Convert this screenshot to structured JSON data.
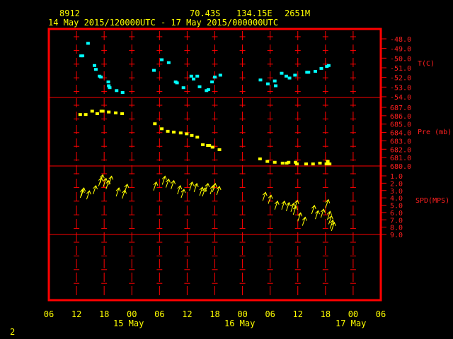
{
  "header": {
    "station": "8912",
    "lat": "70.43S",
    "lon": "134.15E",
    "elev": "2651M",
    "period": "14 May 2015/120000UTC - 17 May 2015/000000UTC"
  },
  "footer": {
    "page_number": "2"
  },
  "colors": {
    "frame": "#ff0000",
    "axis_text": "#ffff00",
    "temp": "#00ffff",
    "pressure": "#ffff00",
    "wind": "#ffff00",
    "panel_text": "#ff2020"
  },
  "chart_data": [
    {
      "type": "scatter",
      "panel": "temperature",
      "ylabel": "T(C)",
      "ticks": [
        "-48.0",
        "-49.0",
        "-50.0",
        "-51.0",
        "-52.0",
        "-53.0",
        "-54.0"
      ],
      "ylim": [
        -54,
        -47.5
      ],
      "points": [
        {
          "x": 13.0,
          "y": -49.8
        },
        {
          "x": 13.3,
          "y": -49.8
        },
        {
          "x": 14.5,
          "y": -48.5
        },
        {
          "x": 15.9,
          "y": -50.8
        },
        {
          "x": 16.2,
          "y": -51.2
        },
        {
          "x": 17.0,
          "y": -51.9
        },
        {
          "x": 17.3,
          "y": -52.0
        },
        {
          "x": 18.9,
          "y": -52.5
        },
        {
          "x": 19.0,
          "y": -52.9
        },
        {
          "x": 19.2,
          "y": -53.1
        },
        {
          "x": 20.7,
          "y": -53.4
        },
        {
          "x": 22.0,
          "y": -53.6
        },
        {
          "x": 28.8,
          "y": -51.3
        },
        {
          "x": 30.5,
          "y": -50.2
        },
        {
          "x": 32.0,
          "y": -50.5
        },
        {
          "x": 33.5,
          "y": -52.5
        },
        {
          "x": 33.8,
          "y": -52.6
        },
        {
          "x": 35.2,
          "y": -53.1
        },
        {
          "x": 36.9,
          "y": -51.9
        },
        {
          "x": 37.4,
          "y": -52.2
        },
        {
          "x": 38.2,
          "y": -51.9
        },
        {
          "x": 38.7,
          "y": -53.0
        },
        {
          "x": 40.2,
          "y": -53.4
        },
        {
          "x": 40.6,
          "y": -53.3
        },
        {
          "x": 41.4,
          "y": -52.5
        },
        {
          "x": 42.0,
          "y": -52.0
        },
        {
          "x": 43.2,
          "y": -51.8
        },
        {
          "x": 51.9,
          "y": -52.3
        },
        {
          "x": 53.5,
          "y": -52.7
        },
        {
          "x": 55.0,
          "y": -52.4
        },
        {
          "x": 55.2,
          "y": -52.9
        },
        {
          "x": 56.5,
          "y": -51.6
        },
        {
          "x": 57.5,
          "y": -51.9
        },
        {
          "x": 58.2,
          "y": -52.1
        },
        {
          "x": 59.4,
          "y": -51.8
        },
        {
          "x": 62.0,
          "y": -51.5
        },
        {
          "x": 62.3,
          "y": -51.5
        },
        {
          "x": 63.8,
          "y": -51.4
        },
        {
          "x": 65.1,
          "y": -51.1
        },
        {
          "x": 66.3,
          "y": -50.9
        },
        {
          "x": 66.7,
          "y": -50.8
        }
      ]
    },
    {
      "type": "scatter",
      "panel": "pressure",
      "ylabel": "Pre (mb)",
      "ticks": [
        "687.0",
        "686.0",
        "685.0",
        "684.0",
        "683.0",
        "682.0",
        "681.0",
        "680.0"
      ],
      "ylim": [
        680,
        688
      ],
      "points": [
        {
          "x": 12.8,
          "y": 686.1
        },
        {
          "x": 14.0,
          "y": 686.1
        },
        {
          "x": 15.4,
          "y": 686.5
        },
        {
          "x": 16.5,
          "y": 686.2
        },
        {
          "x": 17.4,
          "y": 686.5
        },
        {
          "x": 17.7,
          "y": 686.5
        },
        {
          "x": 19.0,
          "y": 686.4
        },
        {
          "x": 20.5,
          "y": 686.3
        },
        {
          "x": 21.9,
          "y": 686.2
        },
        {
          "x": 29.0,
          "y": 685.0
        },
        {
          "x": 30.5,
          "y": 684.4
        },
        {
          "x": 31.8,
          "y": 684.1
        },
        {
          "x": 33.1,
          "y": 684.0
        },
        {
          "x": 34.6,
          "y": 683.9
        },
        {
          "x": 35.9,
          "y": 683.8
        },
        {
          "x": 37.0,
          "y": 683.6
        },
        {
          "x": 38.2,
          "y": 683.4
        },
        {
          "x": 39.4,
          "y": 682.5
        },
        {
          "x": 40.5,
          "y": 682.4
        },
        {
          "x": 40.8,
          "y": 682.4
        },
        {
          "x": 41.5,
          "y": 682.2
        },
        {
          "x": 43.0,
          "y": 681.9
        },
        {
          "x": 51.8,
          "y": 680.8
        },
        {
          "x": 53.4,
          "y": 680.5
        },
        {
          "x": 55.0,
          "y": 680.4
        },
        {
          "x": 56.7,
          "y": 680.3
        },
        {
          "x": 57.6,
          "y": 680.3
        },
        {
          "x": 58.0,
          "y": 680.4
        },
        {
          "x": 59.5,
          "y": 680.4
        },
        {
          "x": 59.8,
          "y": 680.2
        },
        {
          "x": 61.8,
          "y": 680.2
        },
        {
          "x": 63.3,
          "y": 680.2
        },
        {
          "x": 64.8,
          "y": 680.3
        },
        {
          "x": 66.2,
          "y": 680.2
        },
        {
          "x": 66.5,
          "y": 680.5
        },
        {
          "x": 66.9,
          "y": 680.2
        }
      ]
    },
    {
      "type": "scatter",
      "panel": "wind",
      "ylabel": "SPD(MPS)",
      "ticks": [
        "1.0",
        "2.0",
        "3.0",
        "4.0",
        "5.0",
        "6.0",
        "7.0",
        "8.0",
        "9.0"
      ],
      "ylim": [
        0.5,
        9.5
      ],
      "points": [
        {
          "x": 12.8,
          "y": 4.0
        },
        {
          "x": 13.0,
          "y": 3.8
        },
        {
          "x": 14.2,
          "y": 4.2
        },
        {
          "x": 15.6,
          "y": 3.5
        },
        {
          "x": 16.8,
          "y": 2.4
        },
        {
          "x": 17.1,
          "y": 2.0
        },
        {
          "x": 17.8,
          "y": 2.5
        },
        {
          "x": 18.4,
          "y": 2.8
        },
        {
          "x": 19.0,
          "y": 2.2
        },
        {
          "x": 20.6,
          "y": 3.8
        },
        {
          "x": 21.9,
          "y": 4.1
        },
        {
          "x": 22.4,
          "y": 3.3
        },
        {
          "x": 28.7,
          "y": 3.0
        },
        {
          "x": 30.6,
          "y": 2.2
        },
        {
          "x": 31.4,
          "y": 2.6
        },
        {
          "x": 32.5,
          "y": 2.8
        },
        {
          "x": 33.9,
          "y": 3.5
        },
        {
          "x": 34.7,
          "y": 4.0
        },
        {
          "x": 36.5,
          "y": 3.0
        },
        {
          "x": 37.5,
          "y": 3.2
        },
        {
          "x": 38.7,
          "y": 3.7
        },
        {
          "x": 39.3,
          "y": 3.8
        },
        {
          "x": 39.9,
          "y": 3.2
        },
        {
          "x": 41.0,
          "y": 3.5
        },
        {
          "x": 41.5,
          "y": 3.2
        },
        {
          "x": 42.4,
          "y": 3.6
        },
        {
          "x": 52.4,
          "y": 4.4
        },
        {
          "x": 53.6,
          "y": 4.8
        },
        {
          "x": 55.0,
          "y": 5.6
        },
        {
          "x": 56.5,
          "y": 5.6
        },
        {
          "x": 57.5,
          "y": 5.8
        },
        {
          "x": 58.5,
          "y": 5.9
        },
        {
          "x": 59.0,
          "y": 6.3
        },
        {
          "x": 59.3,
          "y": 5.5
        },
        {
          "x": 60.0,
          "y": 7.2
        },
        {
          "x": 61.0,
          "y": 7.8
        },
        {
          "x": 63.0,
          "y": 6.2
        },
        {
          "x": 63.8,
          "y": 6.9
        },
        {
          "x": 65.0,
          "y": 6.7
        },
        {
          "x": 66.0,
          "y": 5.4
        },
        {
          "x": 66.4,
          "y": 7.0
        },
        {
          "x": 66.7,
          "y": 7.6
        },
        {
          "x": 67.0,
          "y": 8.2
        },
        {
          "x": 67.3,
          "y": 8.5
        }
      ]
    }
  ],
  "x_axis": {
    "range": [
      6,
      78
    ],
    "tick_labels": [
      "06",
      "12",
      "18",
      "00",
      "06",
      "12",
      "18",
      "00",
      "06",
      "12",
      "18",
      "00",
      "06"
    ],
    "day_labels": [
      "15 May",
      "16 May",
      "17 May"
    ]
  }
}
